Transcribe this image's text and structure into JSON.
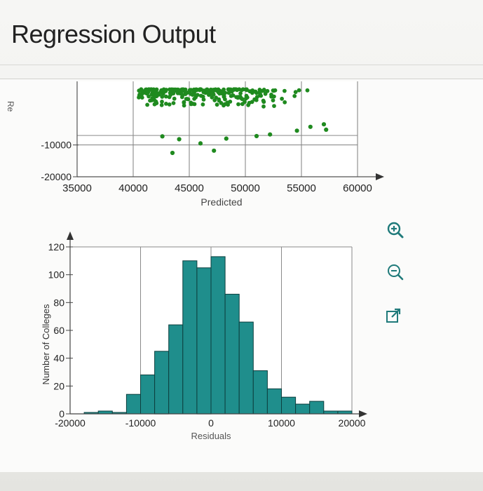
{
  "page": {
    "title": "Regression Output",
    "stub_label": "Re"
  },
  "tools": [
    {
      "name": "zoom-in-icon"
    },
    {
      "name": "zoom-out-icon"
    },
    {
      "name": "external-link-icon"
    }
  ],
  "colors": {
    "scatter_points": "#1f8a1f",
    "histogram_bars": "#1f8e8c",
    "tool_icons": "#1f7a7a"
  },
  "chart_data": [
    {
      "type": "scatter",
      "xlabel": "Predicted",
      "ylabel": "Re",
      "xlim": [
        35000,
        60000
      ],
      "ylim": [
        -20000,
        10000
      ],
      "x_ticks": [
        35000,
        40000,
        45000,
        50000,
        55000,
        60000
      ],
      "x_tick_labels": [
        "35000",
        "40000",
        "45000",
        "50000",
        "55000",
        "60000"
      ],
      "y_ticks": [
        -10000,
        -20000
      ],
      "y_tick_labels": [
        "-10000",
        "-20000"
      ],
      "grid": true,
      "points": [
        {
          "x": 43500,
          "y": -12500
        },
        {
          "x": 46000,
          "y": -9500
        },
        {
          "x": 47200,
          "y": -11800
        },
        {
          "x": 44100,
          "y": -8200
        },
        {
          "x": 42600,
          "y": -7300
        },
        {
          "x": 48300,
          "y": -8000
        },
        {
          "x": 51000,
          "y": -7200
        },
        {
          "x": 52200,
          "y": -6700
        },
        {
          "x": 57200,
          "y": -5200
        },
        {
          "x": 57000,
          "y": -3500
        },
        {
          "x": 55800,
          "y": -4300
        },
        {
          "x": 54600,
          "y": -5500
        }
      ]
    },
    {
      "type": "bar",
      "xlabel": "Residuals",
      "ylabel": "Number of Colleges",
      "xlim": [
        -20000,
        20000
      ],
      "ylim": [
        0,
        120
      ],
      "x_ticks": [
        -20000,
        -10000,
        0,
        10000,
        20000
      ],
      "x_tick_labels": [
        "-20000",
        "-10000",
        "0",
        "10000",
        "20000"
      ],
      "y_ticks": [
        0,
        20,
        40,
        60,
        80,
        100,
        120
      ],
      "y_tick_labels": [
        "0",
        "20",
        "40",
        "60",
        "80",
        "100",
        "120"
      ],
      "grid": true,
      "bin_width": 2000,
      "bins": [
        {
          "start": -20000,
          "count": 0
        },
        {
          "start": -18000,
          "count": 1
        },
        {
          "start": -16000,
          "count": 2
        },
        {
          "start": -14000,
          "count": 1
        },
        {
          "start": -12000,
          "count": 14
        },
        {
          "start": -10000,
          "count": 28
        },
        {
          "start": -8000,
          "count": 45
        },
        {
          "start": -6000,
          "count": 64
        },
        {
          "start": -4000,
          "count": 110
        },
        {
          "start": -2000,
          "count": 105
        },
        {
          "start": 0,
          "count": 113
        },
        {
          "start": 2000,
          "count": 86
        },
        {
          "start": 4000,
          "count": 66
        },
        {
          "start": 6000,
          "count": 31
        },
        {
          "start": 8000,
          "count": 18
        },
        {
          "start": 10000,
          "count": 12
        },
        {
          "start": 12000,
          "count": 7
        },
        {
          "start": 14000,
          "count": 9
        },
        {
          "start": 16000,
          "count": 2
        },
        {
          "start": 18000,
          "count": 2
        }
      ]
    }
  ]
}
